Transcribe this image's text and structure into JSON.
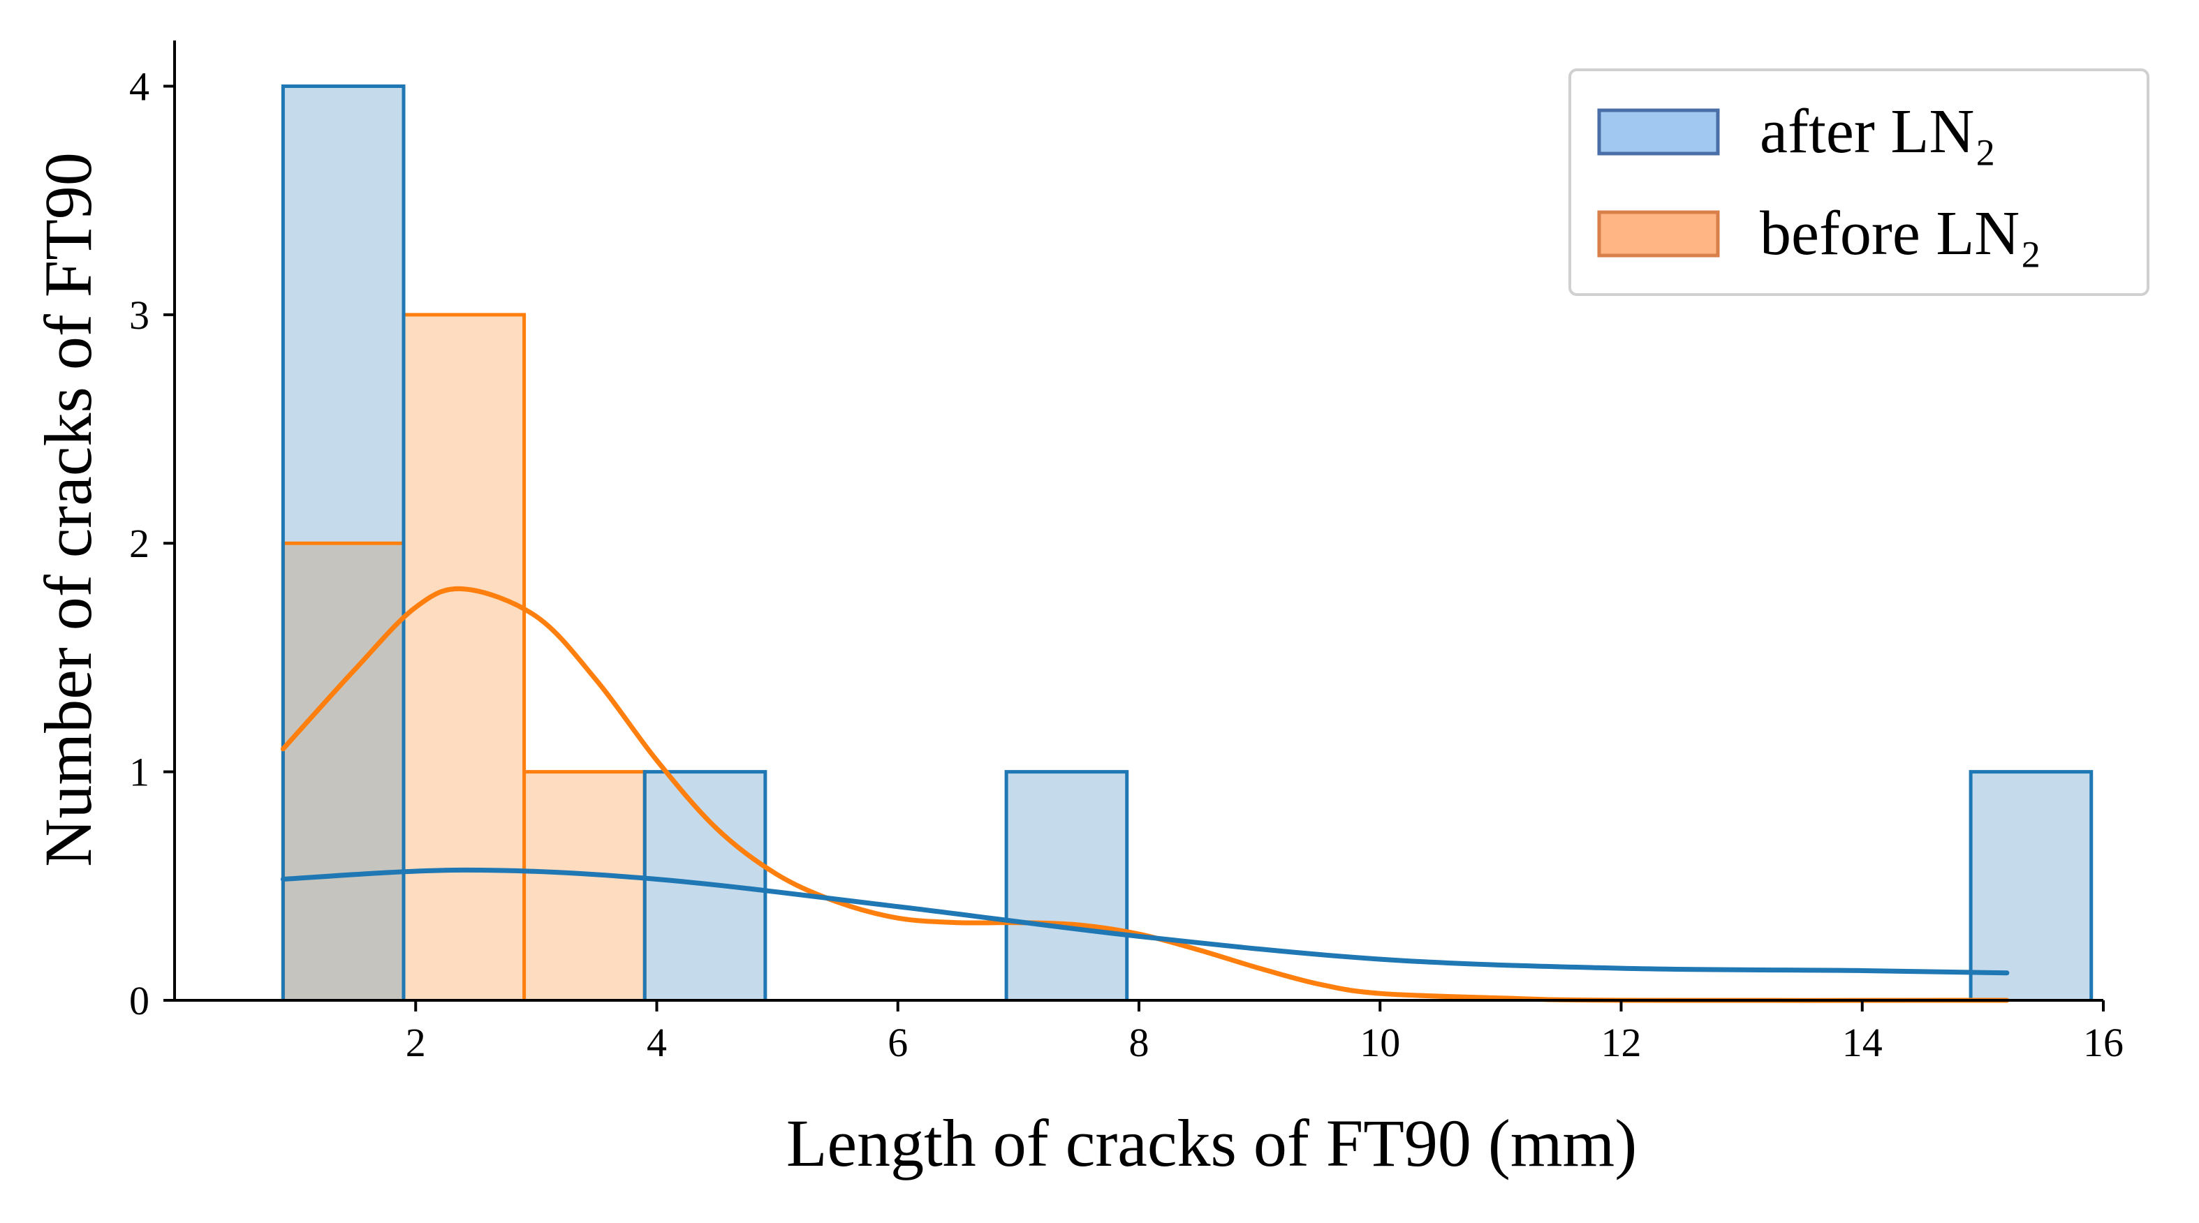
{
  "chart_data": {
    "type": "histogram",
    "title": "",
    "xlabel": "Length of cracks of FT90 (mm)",
    "ylabel": "Number of cracks of FT90",
    "xlim": [
      0,
      16
    ],
    "ylim": [
      0,
      4.2
    ],
    "xticks": [
      2,
      4,
      6,
      8,
      10,
      12,
      14,
      16
    ],
    "yticks": [
      0,
      1,
      2,
      3,
      4
    ],
    "grid": false,
    "legend_position": "top-right",
    "bin_edges": [
      0.9,
      1.9,
      2.9,
      3.9,
      4.9,
      5.9,
      6.9,
      7.9,
      8.9,
      9.9,
      10.9,
      11.9,
      12.9,
      13.9,
      14.9,
      15.9
    ],
    "series": [
      {
        "name": "after LN₂",
        "color": "#1f77b4",
        "fill_color": "#c5dbec",
        "legend_fill": "#a1c8f0",
        "legend_edge": "#4a6fa8",
        "counts": [
          4,
          0,
          0,
          1,
          0,
          0,
          1,
          0,
          0,
          0,
          0,
          0,
          0,
          0,
          1
        ],
        "kde_x": [
          0.9,
          2.4,
          4.0,
          6.0,
          8.0,
          10.0,
          12.0,
          14.0,
          15.2
        ],
        "kde_y": [
          0.53,
          0.57,
          0.53,
          0.41,
          0.28,
          0.18,
          0.14,
          0.13,
          0.12
        ]
      },
      {
        "name": "before LN₂",
        "color": "#ff7f0e",
        "fill_color": "#fddcbf",
        "legend_fill": "#ffb584",
        "legend_edge": "#d97f4a",
        "counts": [
          2,
          3,
          1,
          0,
          0,
          0,
          0,
          0,
          0,
          0,
          0,
          0,
          0,
          0,
          0
        ],
        "kde_x": [
          0.9,
          1.5,
          2.0,
          2.4,
          3.0,
          3.5,
          4.0,
          4.5,
          5.0,
          5.5,
          6.0,
          6.5,
          7.0,
          7.5,
          8.0,
          8.5,
          9.0,
          9.5,
          10.0,
          11.0,
          12.0,
          15.2
        ],
        "kde_y": [
          1.1,
          1.45,
          1.72,
          1.8,
          1.68,
          1.4,
          1.05,
          0.75,
          0.55,
          0.43,
          0.36,
          0.34,
          0.34,
          0.33,
          0.29,
          0.22,
          0.14,
          0.07,
          0.03,
          0.01,
          0.0,
          0.0
        ]
      }
    ]
  }
}
